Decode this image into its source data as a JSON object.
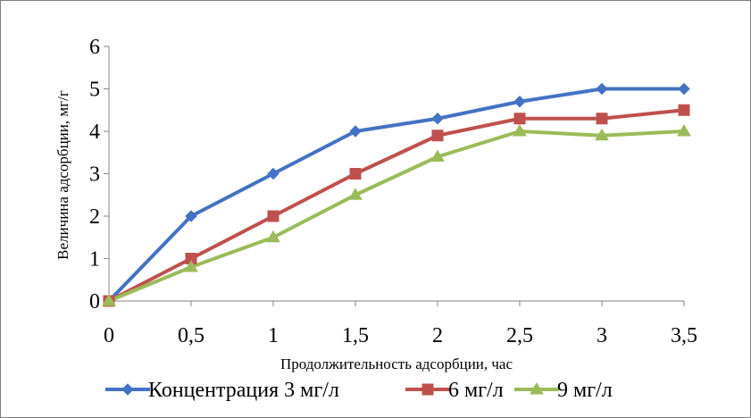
{
  "chart_data": {
    "type": "line",
    "title": "",
    "xlabel": "Продолжительность адсорбции, час",
    "ylabel": "Величина адсорбции, мг/г",
    "x": [
      0,
      0.5,
      1,
      1.5,
      2,
      2.5,
      3,
      3.5
    ],
    "x_tick_labels": [
      "0",
      "0,5",
      "1",
      "1,5",
      "2",
      "2,5",
      "3",
      "3,5"
    ],
    "y_tick_labels": [
      "0",
      "1",
      "2",
      "3",
      "4",
      "5",
      "6"
    ],
    "ylim": [
      0,
      6
    ],
    "xlim": [
      0,
      3.5
    ],
    "grid": false,
    "legend_position": "bottom",
    "series": [
      {
        "name": "Концентрация 3 мг/л",
        "marker": "diamond",
        "color": "#4472C4",
        "values": [
          0,
          2,
          3,
          4,
          4.3,
          4.7,
          5,
          5
        ]
      },
      {
        "name": "6 мг/л",
        "marker": "square",
        "color": "#C0504D",
        "values": [
          0,
          1,
          2,
          3,
          3.9,
          4.3,
          4.3,
          4.5
        ]
      },
      {
        "name": "9 мг/л",
        "marker": "triangle",
        "color": "#9BBB59",
        "values": [
          0,
          0.8,
          1.5,
          2.5,
          3.4,
          4,
          3.9,
          4
        ]
      }
    ]
  }
}
